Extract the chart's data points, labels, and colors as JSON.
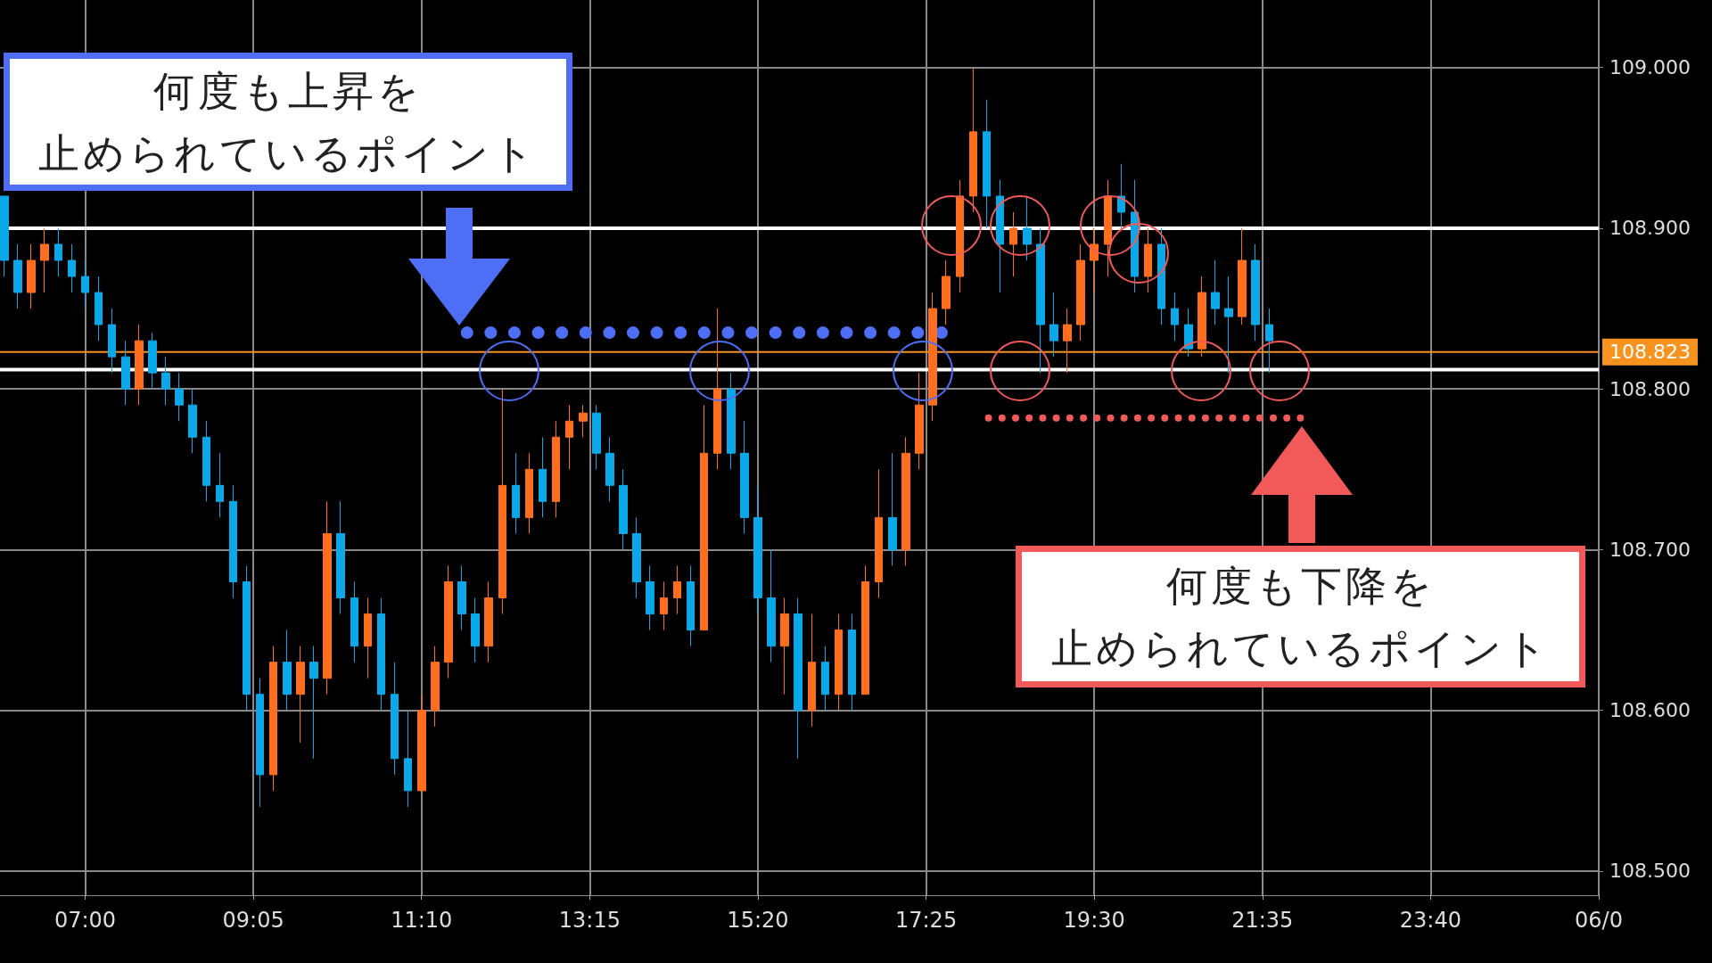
{
  "chart_data": {
    "type": "candlestick",
    "annotations": [
      "何度も上昇を止められているポイント",
      "何度も下降を止められているポイント"
    ],
    "x": [
      6,
      6.167,
      6.333,
      6.5,
      6.667,
      6.833,
      7,
      7.167,
      7.333,
      7.5,
      7.667,
      7.833,
      8,
      8.167,
      8.333,
      8.5,
      8.667,
      8.833,
      9,
      9.167,
      9.333,
      9.5,
      9.667,
      9.833,
      10,
      10.167,
      10.333,
      10.5,
      10.667,
      10.833,
      11,
      11.167,
      11.333,
      11.5,
      11.667,
      11.833,
      12,
      12.167,
      12.333,
      12.5,
      12.667,
      12.833,
      13,
      13.167,
      13.333,
      13.5,
      13.667,
      13.833,
      14,
      14.167,
      14.333,
      14.5,
      14.667,
      14.833,
      15,
      15.167,
      15.333,
      15.5,
      15.667,
      15.833,
      16,
      16.167,
      16.333,
      16.5,
      16.667,
      16.833,
      17,
      17.167,
      17.333,
      17.5,
      17.667,
      17.833,
      18,
      18.167,
      18.333,
      18.5,
      18.667,
      18.833,
      19,
      19.167,
      19.333,
      19.5,
      19.667,
      19.833,
      20,
      20.167,
      20.333,
      20.5,
      20.667,
      20.833,
      21,
      21.167,
      21.333,
      21.5,
      21.667
    ],
    "ohlc": [
      [
        108.92,
        108.92,
        108.87,
        108.88
      ],
      [
        108.88,
        108.89,
        108.85,
        108.86
      ],
      [
        108.86,
        108.89,
        108.85,
        108.88
      ],
      [
        108.88,
        108.9,
        108.86,
        108.89
      ],
      [
        108.89,
        108.9,
        108.87,
        108.88
      ],
      [
        108.88,
        108.89,
        108.86,
        108.87
      ],
      [
        108.87,
        108.88,
        108.85,
        108.86
      ],
      [
        108.86,
        108.87,
        108.83,
        108.84
      ],
      [
        108.84,
        108.85,
        108.81,
        108.82
      ],
      [
        108.82,
        108.83,
        108.79,
        108.8
      ],
      [
        108.8,
        108.84,
        108.79,
        108.83
      ],
      [
        108.83,
        108.835,
        108.8,
        108.81
      ],
      [
        108.81,
        108.82,
        108.79,
        108.8
      ],
      [
        108.8,
        108.81,
        108.78,
        108.79
      ],
      [
        108.79,
        108.8,
        108.76,
        108.77
      ],
      [
        108.77,
        108.78,
        108.73,
        108.74
      ],
      [
        108.74,
        108.76,
        108.72,
        108.73
      ],
      [
        108.73,
        108.74,
        108.67,
        108.68
      ],
      [
        108.68,
        108.69,
        108.6,
        108.61
      ],
      [
        108.61,
        108.62,
        108.54,
        108.56
      ],
      [
        108.56,
        108.64,
        108.55,
        108.63
      ],
      [
        108.63,
        108.65,
        108.6,
        108.61
      ],
      [
        108.61,
        108.64,
        108.58,
        108.63
      ],
      [
        108.63,
        108.64,
        108.57,
        108.62
      ],
      [
        108.62,
        108.73,
        108.61,
        108.71
      ],
      [
        108.71,
        108.73,
        108.66,
        108.67
      ],
      [
        108.67,
        108.68,
        108.63,
        108.64
      ],
      [
        108.64,
        108.67,
        108.62,
        108.66
      ],
      [
        108.66,
        108.67,
        108.6,
        108.61
      ],
      [
        108.61,
        108.63,
        108.56,
        108.57
      ],
      [
        108.57,
        108.6,
        108.54,
        108.55
      ],
      [
        108.55,
        108.61,
        108.55,
        108.6
      ],
      [
        108.6,
        108.64,
        108.59,
        108.63
      ],
      [
        108.63,
        108.69,
        108.62,
        108.68
      ],
      [
        108.68,
        108.69,
        108.65,
        108.66
      ],
      [
        108.66,
        108.67,
        108.63,
        108.64
      ],
      [
        108.64,
        108.68,
        108.63,
        108.67
      ],
      [
        108.67,
        108.8,
        108.66,
        108.74
      ],
      [
        108.74,
        108.76,
        108.71,
        108.72
      ],
      [
        108.72,
        108.76,
        108.71,
        108.75
      ],
      [
        108.75,
        108.77,
        108.72,
        108.73
      ],
      [
        108.73,
        108.78,
        108.72,
        108.77
      ],
      [
        108.77,
        108.79,
        108.75,
        108.78
      ],
      [
        108.78,
        108.79,
        108.77,
        108.785
      ],
      [
        108.785,
        108.79,
        108.75,
        108.76
      ],
      [
        108.76,
        108.77,
        108.73,
        108.74
      ],
      [
        108.74,
        108.75,
        108.7,
        108.71
      ],
      [
        108.71,
        108.72,
        108.67,
        108.68
      ],
      [
        108.68,
        108.69,
        108.65,
        108.66
      ],
      [
        108.66,
        108.68,
        108.65,
        108.67
      ],
      [
        108.67,
        108.69,
        108.66,
        108.68
      ],
      [
        108.68,
        108.69,
        108.64,
        108.65
      ],
      [
        108.65,
        108.79,
        108.65,
        108.76
      ],
      [
        108.76,
        108.85,
        108.75,
        108.8
      ],
      [
        108.8,
        108.81,
        108.75,
        108.76
      ],
      [
        108.76,
        108.78,
        108.71,
        108.72
      ],
      [
        108.72,
        108.74,
        108.66,
        108.67
      ],
      [
        108.67,
        108.7,
        108.63,
        108.64
      ],
      [
        108.64,
        108.67,
        108.61,
        108.66
      ],
      [
        108.66,
        108.67,
        108.57,
        108.6
      ],
      [
        108.6,
        108.66,
        108.59,
        108.63
      ],
      [
        108.63,
        108.64,
        108.6,
        108.61
      ],
      [
        108.61,
        108.66,
        108.6,
        108.65
      ],
      [
        108.65,
        108.66,
        108.6,
        108.61
      ],
      [
        108.61,
        108.69,
        108.61,
        108.68
      ],
      [
        108.68,
        108.75,
        108.67,
        108.72
      ],
      [
        108.72,
        108.76,
        108.69,
        108.7
      ],
      [
        108.7,
        108.77,
        108.69,
        108.76
      ],
      [
        108.76,
        108.81,
        108.75,
        108.79
      ],
      [
        108.79,
        108.86,
        108.78,
        108.85
      ],
      [
        108.85,
        108.88,
        108.84,
        108.87
      ],
      [
        108.87,
        108.93,
        108.86,
        108.92
      ],
      [
        108.92,
        109,
        108.91,
        108.96
      ],
      [
        108.96,
        108.98,
        108.9,
        108.92
      ],
      [
        108.92,
        108.93,
        108.86,
        108.89
      ],
      [
        108.89,
        108.91,
        108.87,
        108.9
      ],
      [
        108.9,
        108.92,
        108.88,
        108.89
      ],
      [
        108.89,
        108.9,
        108.81,
        108.84
      ],
      [
        108.84,
        108.86,
        108.82,
        108.83
      ],
      [
        108.83,
        108.85,
        108.81,
        108.84
      ],
      [
        108.84,
        108.89,
        108.83,
        108.88
      ],
      [
        108.88,
        108.9,
        108.86,
        108.89
      ],
      [
        108.89,
        108.93,
        108.87,
        108.92
      ],
      [
        108.92,
        108.94,
        108.9,
        108.91
      ],
      [
        108.91,
        108.93,
        108.86,
        108.87
      ],
      [
        108.87,
        108.9,
        108.86,
        108.89
      ],
      [
        108.89,
        108.9,
        108.84,
        108.85
      ],
      [
        108.85,
        108.86,
        108.83,
        108.84
      ],
      [
        108.84,
        108.85,
        108.82,
        108.825
      ],
      [
        108.825,
        108.87,
        108.82,
        108.86
      ],
      [
        108.86,
        108.88,
        108.84,
        108.85
      ],
      [
        108.85,
        108.87,
        108.81,
        108.845
      ],
      [
        108.845,
        108.9,
        108.84,
        108.88
      ],
      [
        108.88,
        108.89,
        108.83,
        108.84
      ],
      [
        108.84,
        108.85,
        108.81,
        108.83
      ]
    ],
    "colors": [
      "#0aa8e8",
      "#0aa8e8",
      "#ff6d1f",
      "#ff6d1f",
      "#0aa8e8",
      "#0aa8e8",
      "#0aa8e8",
      "#0aa8e8",
      "#0aa8e8",
      "#0aa8e8",
      "#ff6d1f",
      "#0aa8e8",
      "#0aa8e8",
      "#0aa8e8",
      "#0aa8e8",
      "#0aa8e8",
      "#0aa8e8",
      "#0aa8e8",
      "#0aa8e8",
      "#0aa8e8",
      "#ff6d1f",
      "#0aa8e8",
      "#ff6d1f",
      "#0aa8e8",
      "#ff6d1f",
      "#0aa8e8",
      "#0aa8e8",
      "#ff6d1f",
      "#0aa8e8",
      "#0aa8e8",
      "#0aa8e8",
      "#ff6d1f",
      "#ff6d1f",
      "#ff6d1f",
      "#0aa8e8",
      "#0aa8e8",
      "#ff6d1f",
      "#ff6d1f",
      "#0aa8e8",
      "#ff6d1f",
      "#0aa8e8",
      "#ff6d1f",
      "#ff6d1f",
      "#ff6d1f",
      "#0aa8e8",
      "#0aa8e8",
      "#0aa8e8",
      "#0aa8e8",
      "#0aa8e8",
      "#ff6d1f",
      "#ff6d1f",
      "#0aa8e8",
      "#ff6d1f",
      "#ff6d1f",
      "#0aa8e8",
      "#0aa8e8",
      "#0aa8e8",
      "#0aa8e8",
      "#ff6d1f",
      "#0aa8e8",
      "#ff6d1f",
      "#0aa8e8",
      "#ff6d1f",
      "#0aa8e8",
      "#ff6d1f",
      "#ff6d1f",
      "#0aa8e8",
      "#ff6d1f",
      "#ff6d1f",
      "#ff6d1f",
      "#ff6d1f",
      "#ff6d1f",
      "#ff6d1f",
      "#0aa8e8",
      "#0aa8e8",
      "#ff6d1f",
      "#0aa8e8",
      "#0aa8e8",
      "#0aa8e8",
      "#ff6d1f",
      "#ff6d1f",
      "#ff6d1f",
      "#ff6d1f",
      "#0aa8e8",
      "#0aa8e8",
      "#ff6d1f",
      "#0aa8e8",
      "#0aa8e8",
      "#0aa8e8",
      "#ff6d1f",
      "#0aa8e8",
      "#0aa8e8",
      "#ff6d1f",
      "#0aa8e8",
      "#0aa8e8"
    ],
    "xlim": [
      5.945,
      25.75
    ],
    "xticks": [
      {
        "value": 7,
        "label": "07:00"
      },
      {
        "value": 9.0833,
        "label": "09:05"
      },
      {
        "value": 11.1667,
        "label": "11:10"
      },
      {
        "value": 13.25,
        "label": "13:15"
      },
      {
        "value": 15.3333,
        "label": "15:20"
      },
      {
        "value": 17.4167,
        "label": "17:25"
      },
      {
        "value": 19.5,
        "label": "19:30"
      },
      {
        "value": 21.5833,
        "label": "21:35"
      },
      {
        "value": 23.6667,
        "label": "23:40"
      },
      {
        "value": 25.75,
        "label": "06/0"
      }
    ],
    "ylim": [
      108.485,
      109.042
    ],
    "yticks": [
      {
        "value": 108.5,
        "label": "108.500"
      },
      {
        "value": 108.6,
        "label": "108.600"
      },
      {
        "value": 108.7,
        "label": "108.700"
      },
      {
        "value": 108.8,
        "label": "108.800"
      },
      {
        "value": 108.9,
        "label": "108.900"
      },
      {
        "value": 109.0,
        "label": "109.000"
      }
    ],
    "ref_lines": [
      {
        "axis": "y",
        "value": 108.9,
        "label": null,
        "color": "#ffffff"
      },
      {
        "axis": "y",
        "value": 108.812,
        "label": null,
        "color": "#ffffff"
      },
      {
        "axis": "y",
        "value": 108.823,
        "label": "108.823",
        "color": "#f7931e"
      }
    ],
    "series": [
      {
        "type": "line",
        "x": [
          11.73,
          17.74
        ],
        "values": [
          108.835,
          108.835
        ],
        "color": "#4d6ef5",
        "line_style": "dotted"
      },
      {
        "type": "line",
        "x": [
          18.19,
          22.14
        ],
        "values": [
          108.782,
          108.782
        ],
        "color": "#f25a5a",
        "line_style": "dotted"
      }
    ],
    "grid": true
  }
}
